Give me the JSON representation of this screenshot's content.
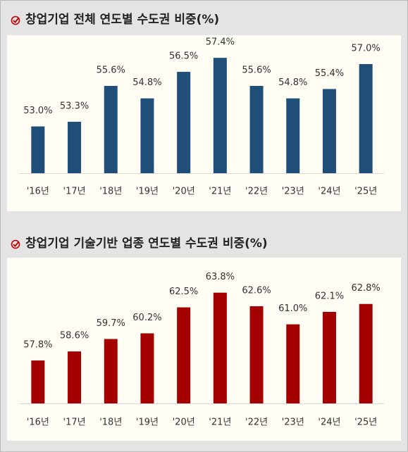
{
  "chart_data": [
    {
      "type": "bar",
      "title": "창업기업 전체 연도별 수도권 비중(%)",
      "categories": [
        "'16년",
        "'17년",
        "'18년",
        "'19년",
        "'20년",
        "'21년",
        "'22년",
        "'23년",
        "'24년",
        "'25년"
      ],
      "values": [
        53.0,
        53.3,
        55.6,
        54.8,
        56.5,
        57.4,
        55.6,
        54.8,
        55.4,
        57.0
      ],
      "value_labels": [
        "53.0%",
        "53.3%",
        "55.6%",
        "54.8%",
        "56.5%",
        "57.4%",
        "55.6%",
        "54.8%",
        "55.4%",
        "57.0%"
      ],
      "color": "#1f4e79",
      "ylim": [
        50,
        58.4
      ]
    },
    {
      "type": "bar",
      "title": "창업기업 기술기반 업종 연도별 수도권 비중(%)",
      "categories": [
        "'16년",
        "'17년",
        "'18년",
        "'19년",
        "'20년",
        "'21년",
        "'22년",
        "'23년",
        "'24년",
        "'25년"
      ],
      "values": [
        57.8,
        58.6,
        59.7,
        60.2,
        62.5,
        63.8,
        62.6,
        61.0,
        62.1,
        62.8
      ],
      "value_labels": [
        "57.8%",
        "58.6%",
        "59.7%",
        "60.2%",
        "62.5%",
        "63.8%",
        "62.6%",
        "61.0%",
        "62.1%",
        "62.8%"
      ],
      "color": "#a50000",
      "ylim": [
        54,
        65.4
      ]
    }
  ]
}
